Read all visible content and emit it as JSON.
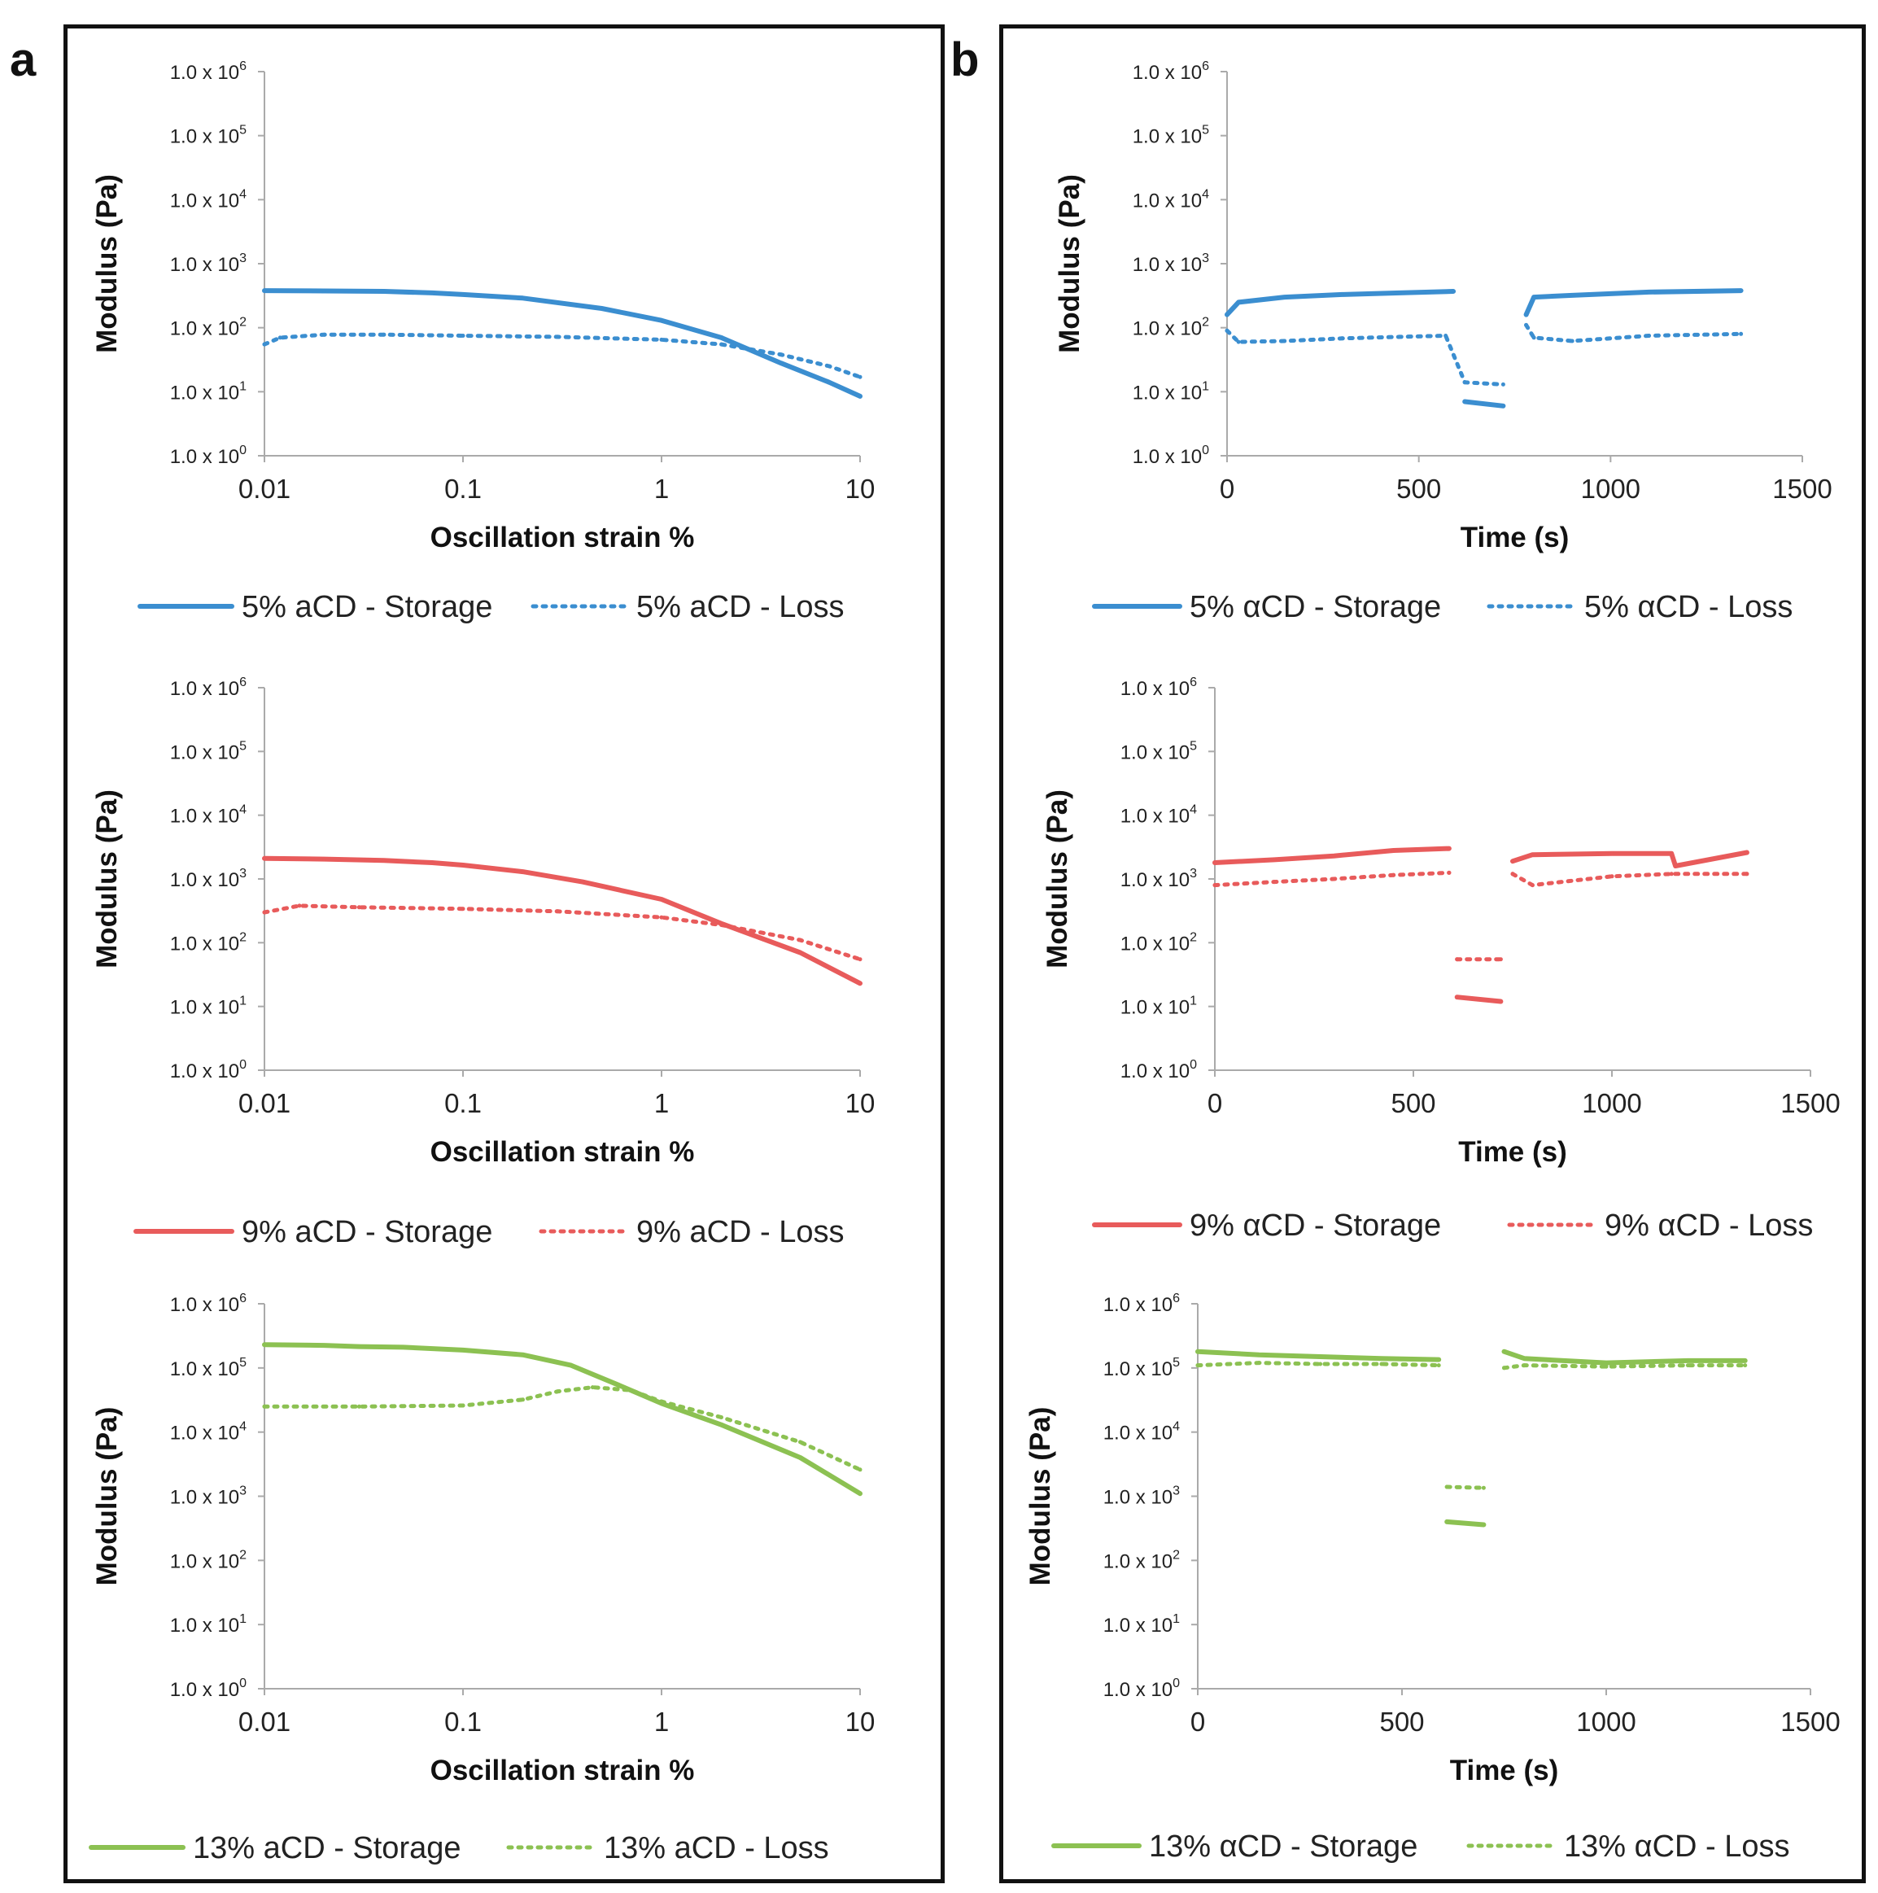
{
  "panels": [
    {
      "letter": "a"
    },
    {
      "letter": "b"
    }
  ],
  "chart_data": [
    {
      "id": "a1",
      "type": "line",
      "panel": "a",
      "xscale": "log",
      "yscale": "log",
      "xlabel": "Oscillation strain %",
      "ylabel": "Modulus (Pa)",
      "xlim": [
        0.01,
        10
      ],
      "xticks": [
        {
          "value": 0.01,
          "label": "0.01"
        },
        {
          "value": 0.1,
          "label": "0.1"
        },
        {
          "value": 1,
          "label": "1"
        },
        {
          "value": 10,
          "label": "10"
        }
      ],
      "yticks": [
        {
          "value": 1,
          "label": "1.0 x 10",
          "exp": "0"
        },
        {
          "value": 10,
          "label": "1.0 x 10",
          "exp": "1"
        },
        {
          "value": 100,
          "label": "1.0 x 10",
          "exp": "2"
        },
        {
          "value": 1000,
          "label": "1.0 x 10",
          "exp": "3"
        },
        {
          "value": 10000,
          "label": "1.0 x 10",
          "exp": "4"
        },
        {
          "value": 100000,
          "label": "1.0 x 10",
          "exp": "5"
        },
        {
          "value": 1000000,
          "label": "1.0 x 10",
          "exp": "6"
        }
      ],
      "series": [
        {
          "name": "5% aCD - Storage",
          "style": "solid",
          "color": "#3b8ed0",
          "x": [
            0.01,
            0.02,
            0.04,
            0.07,
            0.1,
            0.2,
            0.5,
            1,
            2,
            4,
            7,
            10
          ],
          "y": [
            380,
            375,
            370,
            350,
            330,
            290,
            200,
            130,
            70,
            28,
            14,
            8.5
          ]
        },
        {
          "name": "5% aCD - Loss",
          "style": "dotted",
          "color": "#3b8ed0",
          "x": [
            0.01,
            0.012,
            0.02,
            0.04,
            0.1,
            0.3,
            1,
            2,
            4,
            7,
            10
          ],
          "y": [
            55,
            70,
            78,
            78,
            75,
            72,
            65,
            55,
            38,
            25,
            17
          ]
        }
      ]
    },
    {
      "id": "a2",
      "type": "line",
      "panel": "a",
      "xscale": "log",
      "yscale": "log",
      "xlabel": "Oscillation strain %",
      "ylabel": "Modulus (Pa)",
      "xlim": [
        0.01,
        10
      ],
      "xticks": [
        {
          "value": 0.01,
          "label": "0.01"
        },
        {
          "value": 0.1,
          "label": "0.1"
        },
        {
          "value": 1,
          "label": "1"
        },
        {
          "value": 10,
          "label": "10"
        }
      ],
      "yticks": [
        {
          "value": 1,
          "label": "1.0 x 10",
          "exp": "0"
        },
        {
          "value": 10,
          "label": "1.0 x 10",
          "exp": "1"
        },
        {
          "value": 100,
          "label": "1.0 x 10",
          "exp": "2"
        },
        {
          "value": 1000,
          "label": "1.0 x 10",
          "exp": "3"
        },
        {
          "value": 10000,
          "label": "1.0 x 10",
          "exp": "4"
        },
        {
          "value": 100000,
          "label": "1.0 x 10",
          "exp": "5"
        },
        {
          "value": 1000000,
          "label": "1.0 x 10",
          "exp": "6"
        }
      ],
      "series": [
        {
          "name": "9% aCD - Storage",
          "style": "solid",
          "color": "#e85b5b",
          "x": [
            0.01,
            0.02,
            0.04,
            0.07,
            0.1,
            0.2,
            0.4,
            1,
            2,
            5,
            10
          ],
          "y": [
            2100,
            2050,
            1950,
            1800,
            1650,
            1300,
            900,
            480,
            200,
            70,
            23
          ]
        },
        {
          "name": "9% aCD - Loss",
          "style": "dotted",
          "color": "#e85b5b",
          "x": [
            0.01,
            0.015,
            0.03,
            0.1,
            0.3,
            1,
            2,
            5,
            10
          ],
          "y": [
            300,
            380,
            360,
            340,
            310,
            250,
            190,
            110,
            55
          ]
        }
      ]
    },
    {
      "id": "a3",
      "type": "line",
      "panel": "a",
      "xscale": "log",
      "yscale": "log",
      "xlabel": "Oscillation strain %",
      "ylabel": "Modulus (Pa)",
      "xlim": [
        0.01,
        10
      ],
      "xticks": [
        {
          "value": 0.01,
          "label": "0.01"
        },
        {
          "value": 0.1,
          "label": "0.1"
        },
        {
          "value": 1,
          "label": "1"
        },
        {
          "value": 10,
          "label": "10"
        }
      ],
      "yticks": [
        {
          "value": 1,
          "label": "1.0 x 10",
          "exp": "0"
        },
        {
          "value": 10,
          "label": "1.0 x 10",
          "exp": "1"
        },
        {
          "value": 100,
          "label": "1.0 x 10",
          "exp": "2"
        },
        {
          "value": 1000,
          "label": "1.0 x 10",
          "exp": "3"
        },
        {
          "value": 10000,
          "label": "1.0 x 10",
          "exp": "4"
        },
        {
          "value": 100000,
          "label": "1.0 x 10",
          "exp": "5"
        },
        {
          "value": 1000000,
          "label": "1.0 x 10",
          "exp": "6"
        }
      ],
      "series": [
        {
          "name": "13% aCD - Storage",
          "style": "solid",
          "color": "#8cc152",
          "x": [
            0.01,
            0.02,
            0.03,
            0.05,
            0.1,
            0.2,
            0.35,
            0.6,
            1,
            2,
            5,
            10
          ],
          "y": [
            230000,
            225000,
            215000,
            210000,
            190000,
            160000,
            110000,
            55000,
            28000,
            13000,
            4000,
            1100
          ]
        },
        {
          "name": "13% aCD - Loss",
          "style": "dotted",
          "color": "#8cc152",
          "x": [
            0.01,
            0.03,
            0.1,
            0.2,
            0.3,
            0.45,
            0.7,
            1,
            2,
            5,
            10
          ],
          "y": [
            25000,
            25000,
            26000,
            32000,
            43000,
            50000,
            45000,
            30000,
            17000,
            7000,
            2600
          ]
        }
      ]
    },
    {
      "id": "b1",
      "type": "scatter",
      "panel": "b",
      "xscale": "linear",
      "yscale": "log",
      "xlabel": "Time (s)",
      "ylabel": "Modulus (Pa)",
      "xlim": [
        0,
        1500
      ],
      "xticks": [
        {
          "value": 0,
          "label": "0"
        },
        {
          "value": 500,
          "label": "500"
        },
        {
          "value": 1000,
          "label": "1000"
        },
        {
          "value": 1500,
          "label": "1500"
        }
      ],
      "yticks": [
        {
          "value": 1,
          "label": "1.0 x 10",
          "exp": "0"
        },
        {
          "value": 10,
          "label": "1.0 x 10",
          "exp": "1"
        },
        {
          "value": 100,
          "label": "1.0 x 10",
          "exp": "2"
        },
        {
          "value": 1000,
          "label": "1.0 x 10",
          "exp": "3"
        },
        {
          "value": 10000,
          "label": "1.0 x 10",
          "exp": "4"
        },
        {
          "value": 100000,
          "label": "1.0 x 10",
          "exp": "5"
        },
        {
          "value": 1000000,
          "label": "1.0 x 10",
          "exp": "6"
        }
      ],
      "series": [
        {
          "name": "5% αCD - Storage",
          "style": "solid",
          "color": "#3b8ed0",
          "x": [
            0,
            30,
            150,
            300,
            450,
            590,
            620,
            720,
            780,
            800,
            900,
            1100,
            1340
          ],
          "y": [
            160,
            250,
            300,
            330,
            350,
            370,
            7,
            6,
            160,
            300,
            320,
            360,
            380
          ]
        },
        {
          "name": "5% αCD - Loss",
          "style": "dotted",
          "color": "#3b8ed0",
          "x": [
            0,
            30,
            150,
            300,
            450,
            570,
            620,
            720,
            780,
            800,
            900,
            1100,
            1340
          ],
          "y": [
            90,
            60,
            62,
            68,
            72,
            75,
            14,
            13,
            110,
            70,
            62,
            75,
            80
          ]
        }
      ]
    },
    {
      "id": "b2",
      "type": "scatter",
      "panel": "b",
      "xscale": "linear",
      "yscale": "log",
      "xlabel": "Time (s)",
      "ylabel": "Modulus (Pa)",
      "xlim": [
        0,
        1500
      ],
      "xticks": [
        {
          "value": 0,
          "label": "0"
        },
        {
          "value": 500,
          "label": "500"
        },
        {
          "value": 1000,
          "label": "1000"
        },
        {
          "value": 1500,
          "label": "1500"
        }
      ],
      "yticks": [
        {
          "value": 1,
          "label": "1.0 x 10",
          "exp": "0"
        },
        {
          "value": 10,
          "label": "1.0 x 10",
          "exp": "1"
        },
        {
          "value": 100,
          "label": "1.0 x 10",
          "exp": "2"
        },
        {
          "value": 1000,
          "label": "1.0 x 10",
          "exp": "3"
        },
        {
          "value": 10000,
          "label": "1.0 x 10",
          "exp": "4"
        },
        {
          "value": 100000,
          "label": "1.0 x 10",
          "exp": "5"
        },
        {
          "value": 1000000,
          "label": "1.0 x 10",
          "exp": "6"
        }
      ],
      "series": [
        {
          "name": "9% αCD - Storage",
          "style": "solid",
          "color": "#e85b5b",
          "x": [
            0,
            150,
            300,
            450,
            590,
            610,
            720,
            750,
            800,
            1000,
            1150,
            1160,
            1340
          ],
          "y": [
            1800,
            2000,
            2300,
            2800,
            3000,
            14,
            12,
            1900,
            2400,
            2500,
            2500,
            1600,
            2600
          ]
        },
        {
          "name": "9% αCD - Loss",
          "style": "dotted",
          "color": "#e85b5b",
          "x": [
            0,
            150,
            300,
            450,
            590,
            610,
            720,
            750,
            800,
            1000,
            1150,
            1340
          ],
          "y": [
            800,
            900,
            1000,
            1150,
            1250,
            55,
            55,
            1200,
            800,
            1100,
            1200,
            1200
          ]
        }
      ]
    },
    {
      "id": "b3",
      "type": "scatter",
      "panel": "b",
      "xscale": "linear",
      "yscale": "log",
      "xlabel": "Time (s)",
      "ylabel": "Modulus (Pa)",
      "xlim": [
        0,
        1500
      ],
      "xticks": [
        {
          "value": 0,
          "label": "0"
        },
        {
          "value": 500,
          "label": "500"
        },
        {
          "value": 1000,
          "label": "1000"
        },
        {
          "value": 1500,
          "label": "1500"
        }
      ],
      "yticks": [
        {
          "value": 1,
          "label": "1.0 x 10",
          "exp": "0"
        },
        {
          "value": 10,
          "label": "1.0 x 10",
          "exp": "1"
        },
        {
          "value": 100,
          "label": "1.0 x 10",
          "exp": "2"
        },
        {
          "value": 1000,
          "label": "1.0 x 10",
          "exp": "3"
        },
        {
          "value": 10000,
          "label": "1.0 x 10",
          "exp": "4"
        },
        {
          "value": 100000,
          "label": "1.0 x 10",
          "exp": "5"
        },
        {
          "value": 1000000,
          "label": "1.0 x 10",
          "exp": "6"
        }
      ],
      "series": [
        {
          "name": "13% αCD - Storage",
          "style": "solid",
          "color": "#8cc152",
          "x": [
            0,
            150,
            300,
            450,
            590,
            610,
            700,
            750,
            800,
            1000,
            1200,
            1340
          ],
          "y": [
            180000,
            160000,
            150000,
            140000,
            135000,
            400,
            360,
            180000,
            140000,
            120000,
            130000,
            130000
          ]
        },
        {
          "name": "13% αCD - Loss",
          "style": "dotted",
          "color": "#8cc152",
          "x": [
            0,
            150,
            300,
            450,
            590,
            610,
            700,
            750,
            800,
            1000,
            1200,
            1340
          ],
          "y": [
            110000,
            120000,
            115000,
            115000,
            110000,
            1400,
            1350,
            100000,
            110000,
            105000,
            110000,
            110000
          ]
        }
      ]
    }
  ]
}
